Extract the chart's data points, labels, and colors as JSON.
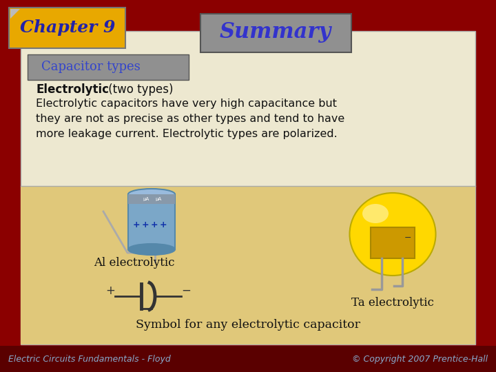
{
  "title": "Summary",
  "chapter": "Chapter 9",
  "section_title": "Capacitor types",
  "bold_text": "Electrolytic",
  "bold_suffix": " (two types)",
  "body_lines": [
    "Electrolytic capacitors have very high capacitance but",
    "they are not as precise as other types and tend to have",
    "more leakage current. Electrolytic types are polarized."
  ],
  "label_al": "Al electrolytic",
  "label_ta": "Ta electrolytic",
  "label_symbol": "Symbol for any electrolytic capacitor",
  "footer_left": "Electric Circuits Fundamentals - Floyd",
  "footer_right": "© Copyright 2007 Prentice-Hall",
  "bg_dark_red": "#8B0000",
  "bg_tan": "#E0C87A",
  "bg_cream": "#EDE8D0",
  "chapter_box_color": "#E8A800",
  "summary_box_color": "#909090",
  "section_box_color": "#909090",
  "title_color": "#3333CC",
  "chapter_text_color": "#2222AA",
  "section_text_color": "#3344CC",
  "body_text_color": "#111111",
  "footer_text_color": "#88AACC",
  "al_cap_color": "#7BA7C8",
  "al_cap_dark": "#5588AA",
  "ta_cap_color": "#FFD800",
  "ta_cap_dark": "#CC9900"
}
